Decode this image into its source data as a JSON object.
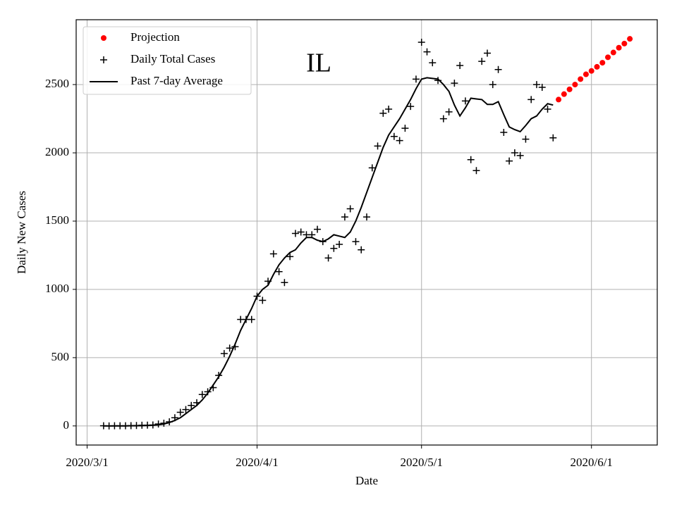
{
  "chart_data": {
    "type": "scatter-line",
    "title": "IL",
    "x_label": "Date",
    "y_label": "Daily New Cases",
    "x": [
      "2020/3/4",
      "2020/3/5",
      "2020/3/6",
      "2020/3/7",
      "2020/3/8",
      "2020/3/9",
      "2020/3/10",
      "2020/3/11",
      "2020/3/12",
      "2020/3/13",
      "2020/3/14",
      "2020/3/15",
      "2020/3/16",
      "2020/3/17",
      "2020/3/18",
      "2020/3/19",
      "2020/3/20",
      "2020/3/21",
      "2020/3/22",
      "2020/3/23",
      "2020/3/24",
      "2020/3/25",
      "2020/3/26",
      "2020/3/27",
      "2020/3/28",
      "2020/3/29",
      "2020/3/30",
      "2020/3/31",
      "2020/4/1",
      "2020/4/2",
      "2020/4/3",
      "2020/4/4",
      "2020/4/5",
      "2020/4/6",
      "2020/4/7",
      "2020/4/8",
      "2020/4/9",
      "2020/4/10",
      "2020/4/11",
      "2020/4/12",
      "2020/4/13",
      "2020/4/14",
      "2020/4/15",
      "2020/4/16",
      "2020/4/17",
      "2020/4/18",
      "2020/4/19",
      "2020/4/20",
      "2020/4/21",
      "2020/4/22",
      "2020/4/23",
      "2020/4/24",
      "2020/4/25",
      "2020/4/26",
      "2020/4/27",
      "2020/4/28",
      "2020/4/29",
      "2020/4/30",
      "2020/5/1",
      "2020/5/2",
      "2020/5/3",
      "2020/5/4",
      "2020/5/5",
      "2020/5/6",
      "2020/5/7",
      "2020/5/8",
      "2020/5/9",
      "2020/5/10",
      "2020/5/11",
      "2020/5/12",
      "2020/5/13",
      "2020/5/14",
      "2020/5/15",
      "2020/5/16",
      "2020/5/17",
      "2020/5/18",
      "2020/5/19",
      "2020/5/20",
      "2020/5/21",
      "2020/5/22",
      "2020/5/23",
      "2020/5/24",
      "2020/5/25"
    ],
    "series": [
      {
        "name": "Projection",
        "color": "#ff0000",
        "marker": "dot",
        "x": [
          "2020/5/26",
          "2020/5/27",
          "2020/5/28",
          "2020/5/29",
          "2020/5/30",
          "2020/5/31",
          "2020/6/1",
          "2020/6/2",
          "2020/6/3",
          "2020/6/4",
          "2020/6/5",
          "2020/6/6",
          "2020/6/7",
          "2020/6/8"
        ],
        "values": [
          2390,
          2430,
          2465,
          2500,
          2540,
          2575,
          2600,
          2630,
          2660,
          2700,
          2735,
          2770,
          2800,
          2835
        ]
      },
      {
        "name": "Daily Total Cases",
        "color": "#000000",
        "marker": "plus",
        "values": [
          1,
          0,
          1,
          1,
          1,
          2,
          3,
          5,
          6,
          7,
          14,
          20,
          30,
          60,
          100,
          120,
          150,
          170,
          230,
          250,
          280,
          370,
          530,
          570,
          580,
          780,
          780,
          780,
          950,
          920,
          1060,
          1260,
          1130,
          1050,
          1240,
          1410,
          1420,
          1400,
          1400,
          1440,
          1350,
          1230,
          1300,
          1330,
          1530,
          1590,
          1350,
          1290,
          1530,
          1890,
          2050,
          2290,
          2320,
          2120,
          2090,
          2180,
          2340,
          2540,
          2810,
          2740,
          2660,
          2530,
          2250,
          2300,
          2510,
          2640,
          2380,
          1950,
          1870,
          2670,
          2730,
          2500,
          2610,
          2150,
          1940,
          2000,
          1980,
          2100,
          2390,
          2500,
          2480,
          2320,
          2110
        ]
      },
      {
        "name": "Past 7-day Average",
        "color": "#000000",
        "marker": "line",
        "values": [
          0,
          0,
          0,
          0,
          0,
          1,
          1,
          2,
          3,
          5,
          8,
          14,
          25,
          40,
          60,
          90,
          120,
          150,
          190,
          240,
          300,
          360,
          430,
          510,
          600,
          700,
          780,
          860,
          950,
          1000,
          1030,
          1110,
          1180,
          1230,
          1270,
          1290,
          1340,
          1380,
          1380,
          1360,
          1350,
          1370,
          1400,
          1390,
          1380,
          1420,
          1500,
          1600,
          1710,
          1820,
          1930,
          2040,
          2130,
          2190,
          2250,
          2320,
          2390,
          2470,
          2540,
          2550,
          2545,
          2540,
          2500,
          2450,
          2350,
          2270,
          2330,
          2400,
          2395,
          2390,
          2355,
          2355,
          2375,
          2280,
          2190,
          2170,
          2155,
          2200,
          2250,
          2270,
          2320,
          2360,
          2350
        ]
      }
    ],
    "xlim": [
      "2020/2/28",
      "2020/6/13"
    ],
    "xticks": [
      "2020/3/1",
      "2020/4/1",
      "2020/5/1",
      "2020/6/1"
    ],
    "ylim": [
      -140,
      2975
    ],
    "yticks": [
      0,
      500,
      1000,
      1500,
      2000,
      2500
    ],
    "grid": true,
    "legend": "upper left"
  }
}
